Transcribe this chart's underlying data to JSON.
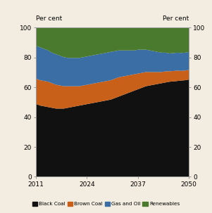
{
  "years": [
    2011,
    2012,
    2013,
    2014,
    2015,
    2016,
    2017,
    2018,
    2019,
    2020,
    2021,
    2022,
    2023,
    2024,
    2025,
    2026,
    2027,
    2028,
    2029,
    2030,
    2031,
    2032,
    2033,
    2034,
    2035,
    2036,
    2037,
    2038,
    2039,
    2040,
    2041,
    2042,
    2043,
    2044,
    2045,
    2046,
    2047,
    2048,
    2049,
    2050
  ],
  "black_coal": [
    49,
    48,
    47.5,
    47,
    46.5,
    46,
    46,
    46,
    46.5,
    47,
    47.5,
    48,
    48.5,
    49,
    49.5,
    50,
    50.5,
    51,
    51.5,
    52,
    53,
    54,
    55,
    56,
    57,
    58,
    59,
    60,
    61,
    61.5,
    62,
    62.5,
    63,
    63.5,
    64,
    64.2,
    64.5,
    64.8,
    65,
    65.5
  ],
  "brown_coal": [
    17,
    17,
    17,
    17,
    16.5,
    16,
    15.5,
    15,
    14.5,
    14,
    13.5,
    13,
    13,
    13,
    13,
    13,
    13,
    13,
    13,
    13,
    13,
    13,
    12.5,
    12,
    11.5,
    11,
    10.5,
    10,
    9.5,
    9,
    8.5,
    8,
    7.5,
    7.5,
    7,
    7,
    7,
    6.5,
    6.5,
    6.5
  ],
  "gas_and_oil": [
    22,
    22,
    21.5,
    21,
    20.5,
    20.5,
    20,
    19.5,
    19,
    19,
    19,
    19,
    19,
    19,
    19,
    19,
    19,
    19,
    19,
    19,
    18.5,
    18,
    17.5,
    17,
    16.5,
    16,
    16,
    15.5,
    15,
    14.5,
    14,
    13.5,
    13,
    12.5,
    12,
    12,
    12,
    12,
    12,
    12
  ],
  "renewables": [
    12,
    13,
    14,
    15,
    17,
    17.5,
    18.5,
    19.5,
    20,
    20,
    20,
    20,
    19.5,
    19,
    18.5,
    18,
    17.5,
    17,
    16.5,
    16,
    15.5,
    15,
    15,
    15,
    15,
    15,
    14.5,
    14.5,
    14.5,
    15,
    15.5,
    16,
    16.5,
    16.5,
    17,
    16.8,
    16.5,
    16.7,
    16.5,
    16
  ],
  "colors": {
    "black_coal": "#111111",
    "brown_coal": "#c8601a",
    "gas_and_oil": "#3a6ea5",
    "renewables": "#4a7a2e"
  },
  "ylim": [
    0,
    100
  ],
  "xlim": [
    2011,
    2050
  ],
  "xticks": [
    2011,
    2024,
    2037,
    2050
  ],
  "yticks": [
    0,
    20,
    40,
    60,
    80,
    100
  ],
  "ylabel": "Per cent",
  "legend_labels": [
    "Black Coal",
    "Brown Coal",
    "Gas and Oil",
    "Renewables"
  ],
  "bg_color": "#f2ede0"
}
